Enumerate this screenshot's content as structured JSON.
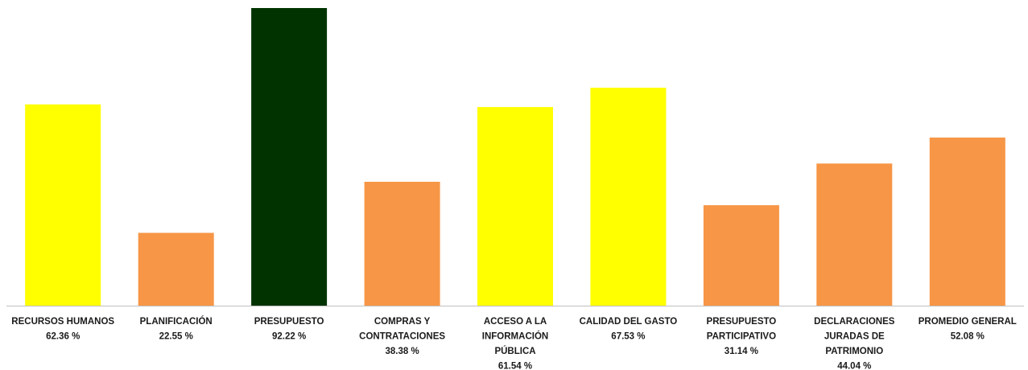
{
  "chart_data": {
    "type": "bar",
    "title": "",
    "xlabel": "",
    "ylabel": "",
    "ylim": [
      0,
      92.22
    ],
    "grid": false,
    "legend": "none",
    "categories": [
      "RECURSOS HUMANOS",
      "PLANIFICACIÓN",
      "PRESUPUESTO",
      "COMPRAS Y CONTRATACIONES",
      "ACCESO A LA INFORMACIÓN PÚBLICA",
      "CALIDAD DEL GASTO",
      "PRESUPUESTO PARTICIPATIVO",
      "DECLARACIONES JURADAS DE PATRIMONIO",
      "PROMEDIO GENERAL"
    ],
    "category_label_lines": [
      [
        "RECURSOS HUMANOS"
      ],
      [
        "PLANIFICACIÓN"
      ],
      [
        "PRESUPUESTO"
      ],
      [
        "COMPRAS Y",
        "CONTRATACIONES"
      ],
      [
        "ACCESO A LA",
        "INFORMACIÓN",
        "PÚBLICA"
      ],
      [
        "CALIDAD DEL GASTO"
      ],
      [
        "PRESUPUESTO",
        "PARTICIPATIVO"
      ],
      [
        "DECLARACIONES",
        "JURADAS DE",
        "PATRIMONIO"
      ],
      [
        "PROMEDIO GENERAL"
      ]
    ],
    "values": [
      62.36,
      22.55,
      92.22,
      38.38,
      61.54,
      67.53,
      31.14,
      44.04,
      52.08
    ],
    "value_labels": [
      "62.36 %",
      "22.55 %",
      "92.22 %",
      "38.38 %",
      "61.54 %",
      "67.53 %",
      "31.14 %",
      "44.04 %",
      "52.08 %"
    ],
    "bar_colors": [
      "#ffff00",
      "#f79646",
      "#003300",
      "#f79646",
      "#ffff00",
      "#ffff00",
      "#f79646",
      "#f79646",
      "#f79646"
    ],
    "axis_color": "#bfbfbf"
  }
}
